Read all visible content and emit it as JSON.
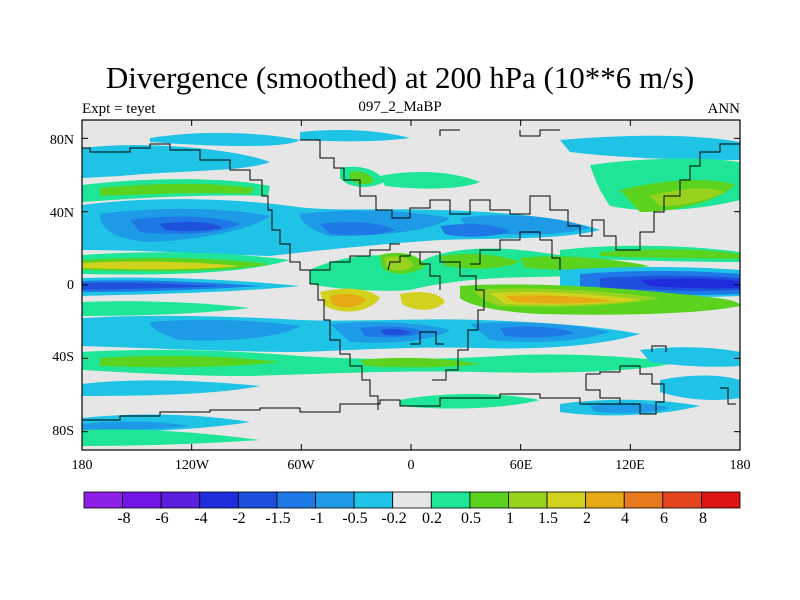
{
  "title": "Divergence (smoothed) at 200 hPa (10**6 m/s)",
  "subtitle_left": "Expt = teyet",
  "subtitle_center": "097_2_MaBP",
  "subtitle_right": "ANN",
  "y_ticks": [
    {
      "label": "80N",
      "lat": 80
    },
    {
      "label": "40N",
      "lat": 40
    },
    {
      "label": "0",
      "lat": 0
    },
    {
      "label": "40S",
      "lat": -40
    },
    {
      "label": "80S",
      "lat": -80
    }
  ],
  "x_ticks": [
    {
      "label": "180",
      "lon": -180
    },
    {
      "label": "120W",
      "lon": -120
    },
    {
      "label": "60W",
      "lon": -60
    },
    {
      "label": "0",
      "lon": 0
    },
    {
      "label": "60E",
      "lon": 60
    },
    {
      "label": "120E",
      "lon": 120
    },
    {
      "label": "180",
      "lon": 180
    }
  ],
  "colorbar": {
    "colors": [
      "#8c1ee6",
      "#7314e6",
      "#5a1edc",
      "#1e2ddc",
      "#1e50dc",
      "#1e78e6",
      "#1e9be6",
      "#1ec3e6",
      "#e6e6e6",
      "#1ee696",
      "#5ad21e",
      "#96d21e",
      "#d2d21e",
      "#e6aa14",
      "#e6781e",
      "#e6461e",
      "#dc1414"
    ],
    "labels": [
      "-8",
      "-6",
      "-4",
      "-2",
      "-1.5",
      "-1",
      "-0.5",
      "-0.2",
      "0.2",
      "0.5",
      "1",
      "1.5",
      "2",
      "4",
      "6",
      "8"
    ]
  }
}
